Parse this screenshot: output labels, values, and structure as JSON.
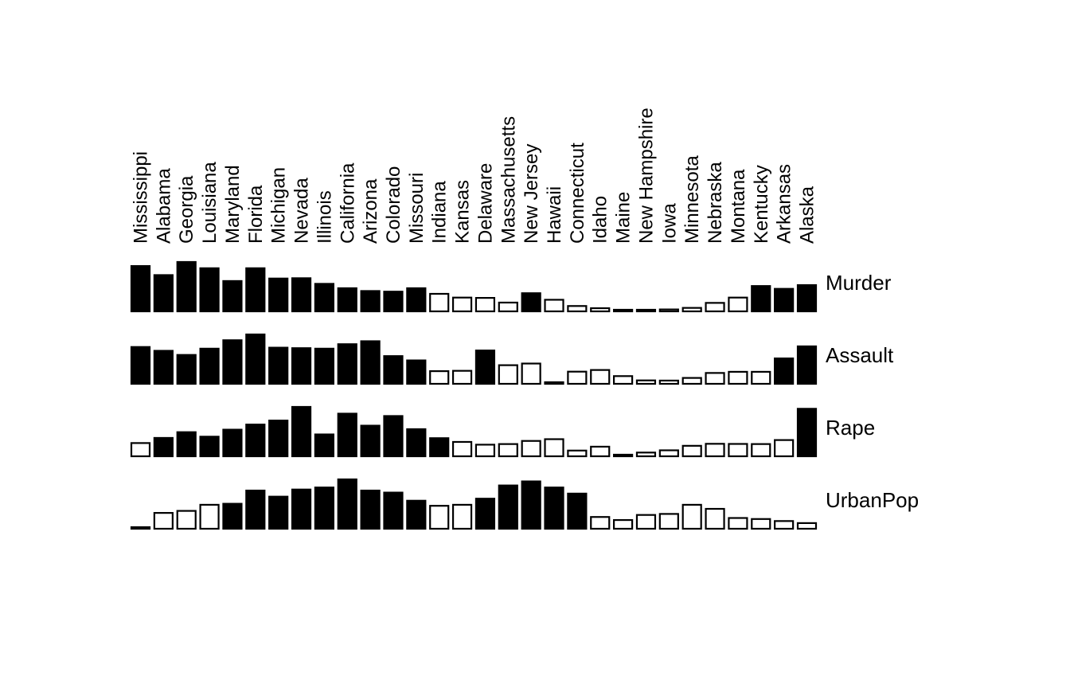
{
  "chart_data": {
    "type": "bar",
    "title": "",
    "categories": [
      "Mississippi",
      "Alabama",
      "Georgia",
      "Louisiana",
      "Maryland",
      "Florida",
      "Michigan",
      "Nevada",
      "Illinois",
      "California",
      "Arizona",
      "Colorado",
      "Missouri",
      "Indiana",
      "Kansas",
      "Delaware",
      "Massachusetts",
      "New Jersey",
      "Hawaii",
      "Connecticut",
      "Idaho",
      "Maine",
      "New Hampshire",
      "Iowa",
      "Minnesota",
      "Nebraska",
      "Montana",
      "Kentucky",
      "Arkansas",
      "Alaska"
    ],
    "series": [
      {
        "name": "Murder",
        "values": [
          16.1,
          13.2,
          17.4,
          15.4,
          11.3,
          15.4,
          12.1,
          12.2,
          10.4,
          9.0,
          8.1,
          7.9,
          9.0,
          7.2,
          6.0,
          5.9,
          4.4,
          7.4,
          5.3,
          3.3,
          2.6,
          2.1,
          2.1,
          2.2,
          2.7,
          4.3,
          6.0,
          9.7,
          8.8,
          10.0
        ],
        "filled": [
          1,
          1,
          1,
          1,
          1,
          1,
          1,
          1,
          1,
          1,
          1,
          1,
          1,
          0,
          0,
          0,
          0,
          1,
          0,
          0,
          0,
          0,
          0,
          0,
          0,
          0,
          0,
          1,
          1,
          1
        ]
      },
      {
        "name": "Assault",
        "values": [
          259,
          236,
          211,
          249,
          300,
          335,
          255,
          252,
          249,
          276,
          294,
          204,
          178,
          113,
          115,
          238,
          149,
          159,
          46,
          110,
          120,
          83,
          57,
          56,
          72,
          102,
          109,
          109,
          190,
          263
        ],
        "filled": [
          1,
          1,
          1,
          1,
          1,
          1,
          1,
          1,
          1,
          1,
          1,
          1,
          1,
          0,
          0,
          1,
          0,
          0,
          0,
          0,
          0,
          0,
          0,
          0,
          0,
          0,
          0,
          0,
          1,
          1
        ]
      },
      {
        "name": "Rape",
        "values": [
          17.1,
          21.2,
          25.8,
          22.2,
          27.8,
          31.9,
          35.1,
          46.0,
          24.0,
          40.6,
          31.0,
          38.7,
          28.2,
          21.0,
          18.0,
          15.8,
          16.3,
          18.8,
          20.2,
          11.1,
          14.2,
          7.8,
          9.5,
          11.3,
          14.9,
          16.5,
          16.4,
          16.3,
          19.5,
          44.5
        ],
        "filled": [
          0,
          1,
          1,
          1,
          1,
          1,
          1,
          1,
          1,
          1,
          1,
          1,
          1,
          1,
          0,
          0,
          0,
          0,
          0,
          0,
          0,
          0,
          0,
          0,
          0,
          0,
          0,
          0,
          0,
          1
        ]
      },
      {
        "name": "UrbanPop",
        "values": [
          44,
          58,
          60,
          66,
          67,
          80,
          74,
          81,
          83,
          91,
          80,
          78,
          70,
          65,
          66,
          72,
          85,
          89,
          83,
          77,
          54,
          51,
          56,
          57,
          66,
          62,
          53,
          52,
          50,
          48
        ],
        "filled": [
          0,
          0,
          0,
          0,
          1,
          1,
          1,
          1,
          1,
          1,
          1,
          1,
          1,
          0,
          0,
          1,
          1,
          1,
          1,
          1,
          0,
          0,
          0,
          0,
          0,
          0,
          0,
          0,
          0,
          0
        ]
      }
    ],
    "colors": {
      "filled": "#000000",
      "hollow": "#ffffff",
      "stroke": "#000000"
    },
    "legend": "none",
    "grid": false
  }
}
